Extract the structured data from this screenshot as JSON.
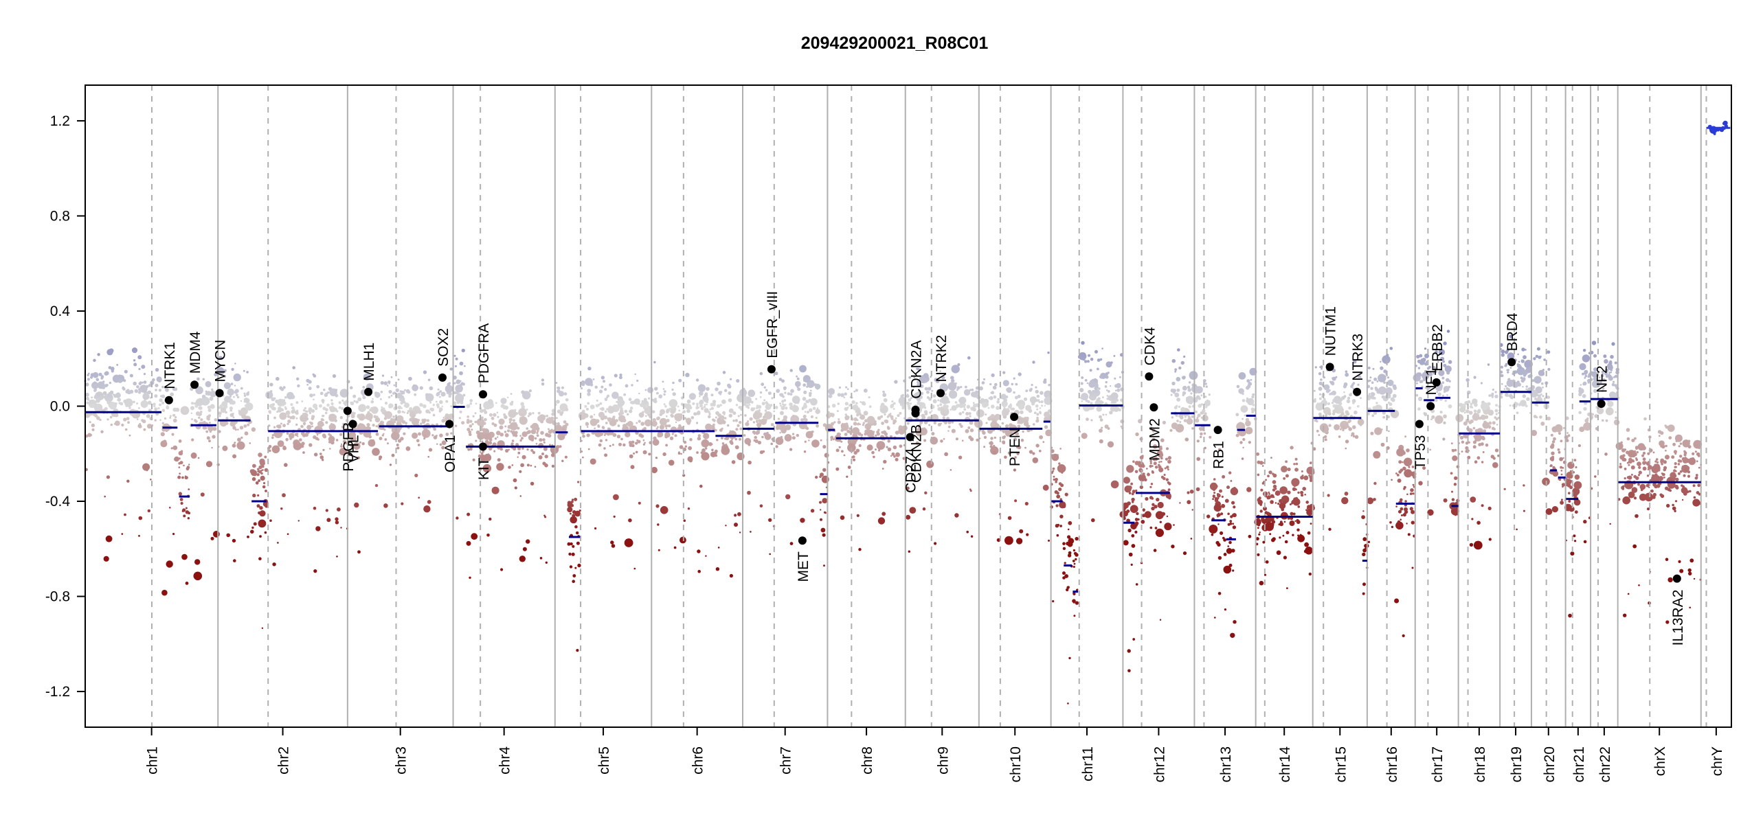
{
  "chart_data": {
    "type": "scatter",
    "title": "209429200021_R08C01",
    "xlabel": "",
    "ylabel": "",
    "ylim": [
      -1.35,
      1.35
    ],
    "yticks": [
      "-1.2",
      "-0.8",
      "-0.4",
      "0.0",
      "0.4",
      "0.8",
      "1.2"
    ],
    "grid": false,
    "colors": {
      "gain": "#8a8cc0",
      "neutral": "#d9d9d9",
      "loss": "#8b1010",
      "segment": "#00008b",
      "chrY_segment": "#2b3bd6",
      "line": "#b0b0b0"
    },
    "chromosomes": [
      {
        "name": "chr1",
        "start": 0,
        "end": 249,
        "centromere": 125
      },
      {
        "name": "chr2",
        "start": 249,
        "end": 492,
        "centromere": 343
      },
      {
        "name": "chr3",
        "start": 492,
        "end": 690,
        "centromere": 583
      },
      {
        "name": "chr4",
        "start": 690,
        "end": 881,
        "centromere": 741
      },
      {
        "name": "chr5",
        "start": 881,
        "end": 1062,
        "centromere": 929
      },
      {
        "name": "chr6",
        "start": 1062,
        "end": 1233,
        "centromere": 1122
      },
      {
        "name": "chr7",
        "start": 1233,
        "end": 1392,
        "centromere": 1292
      },
      {
        "name": "chr8",
        "start": 1392,
        "end": 1538,
        "centromere": 1437
      },
      {
        "name": "chr9",
        "start": 1538,
        "end": 1676,
        "centromere": 1587
      },
      {
        "name": "chr10",
        "start": 1676,
        "end": 1811,
        "centromere": 1716
      },
      {
        "name": "chr11",
        "start": 1811,
        "end": 1946,
        "centromere": 1864
      },
      {
        "name": "chr12",
        "start": 1946,
        "end": 2080,
        "centromere": 1981
      },
      {
        "name": "chr13",
        "start": 2080,
        "end": 2195,
        "centromere": 2098
      },
      {
        "name": "chr14",
        "start": 2195,
        "end": 2302,
        "centromere": 2212
      },
      {
        "name": "chr15",
        "start": 2302,
        "end": 2404,
        "centromere": 2322
      },
      {
        "name": "chr16",
        "start": 2404,
        "end": 2494,
        "centromere": 2441
      },
      {
        "name": "chr17",
        "start": 2494,
        "end": 2575,
        "centromere": 2518
      },
      {
        "name": "chr18",
        "start": 2575,
        "end": 2653,
        "centromere": 2593
      },
      {
        "name": "chr19",
        "start": 2653,
        "end": 2712,
        "centromere": 2680
      },
      {
        "name": "chr20",
        "start": 2712,
        "end": 2776,
        "centromere": 2740
      },
      {
        "name": "chr21",
        "start": 2776,
        "end": 2823,
        "centromere": 2789
      },
      {
        "name": "chr22",
        "start": 2823,
        "end": 2874,
        "centromere": 2837
      },
      {
        "name": "chrX",
        "start": 2874,
        "end": 3030,
        "centromere": 2934
      },
      {
        "name": "chrY",
        "start": 3030,
        "end": 3087,
        "centromere": 3040
      }
    ],
    "segments": [
      {
        "start": 0,
        "end": 143,
        "value": -0.025
      },
      {
        "start": 145,
        "end": 173,
        "value": -0.09
      },
      {
        "start": 176,
        "end": 196,
        "value": -0.38
      },
      {
        "start": 198,
        "end": 246,
        "value": -0.08
      },
      {
        "start": 249,
        "end": 310,
        "value": -0.06
      },
      {
        "start": 312,
        "end": 340,
        "value": -0.4
      },
      {
        "start": 343,
        "end": 492,
        "value": -0.105
      },
      {
        "start": 492,
        "end": 549,
        "value": -0.105
      },
      {
        "start": 551,
        "end": 688,
        "value": -0.085
      },
      {
        "start": 690,
        "end": 712,
        "value": -0.003
      },
      {
        "start": 714,
        "end": 881,
        "value": -0.17
      },
      {
        "start": 882,
        "end": 905,
        "value": -0.11
      },
      {
        "start": 907,
        "end": 928,
        "value": -0.55
      },
      {
        "start": 930,
        "end": 1121,
        "value": -0.105
      },
      {
        "start": 1122,
        "end": 1180,
        "value": -0.105
      },
      {
        "start": 1182,
        "end": 1232,
        "value": -0.125
      },
      {
        "start": 1233,
        "end": 1292,
        "value": -0.095
      },
      {
        "start": 1294,
        "end": 1375,
        "value": -0.07
      },
      {
        "start": 1378,
        "end": 1392,
        "value": -0.37
      },
      {
        "start": 1393,
        "end": 1406,
        "value": -0.1
      },
      {
        "start": 1408,
        "end": 1538,
        "value": -0.135
      },
      {
        "start": 1539,
        "end": 1676,
        "value": -0.06
      },
      {
        "start": 1677,
        "end": 1795,
        "value": -0.095
      },
      {
        "start": 1797,
        "end": 1810,
        "value": -0.065
      },
      {
        "start": 1812,
        "end": 1833,
        "value": -0.4
      },
      {
        "start": 1835,
        "end": 1850,
        "value": -0.67
      },
      {
        "start": 1852,
        "end": 1862,
        "value": -0.78
      },
      {
        "start": 1864,
        "end": 1946,
        "value": 0.003
      },
      {
        "start": 1947,
        "end": 1968,
        "value": -0.49
      },
      {
        "start": 1970,
        "end": 2034,
        "value": -0.365
      },
      {
        "start": 2036,
        "end": 2080,
        "value": -0.03
      },
      {
        "start": 2081,
        "end": 2110,
        "value": -0.08
      },
      {
        "start": 2112,
        "end": 2138,
        "value": -0.48
      },
      {
        "start": 2140,
        "end": 2158,
        "value": -0.56
      },
      {
        "start": 2160,
        "end": 2175,
        "value": -0.1
      },
      {
        "start": 2177,
        "end": 2195,
        "value": -0.04
      },
      {
        "start": 2196,
        "end": 2302,
        "value": -0.465
      },
      {
        "start": 2303,
        "end": 2393,
        "value": -0.05
      },
      {
        "start": 2395,
        "end": 2404,
        "value": -0.65
      },
      {
        "start": 2405,
        "end": 2456,
        "value": -0.02
      },
      {
        "start": 2458,
        "end": 2493,
        "value": -0.41
      },
      {
        "start": 2495,
        "end": 2508,
        "value": 0.075
      },
      {
        "start": 2510,
        "end": 2530,
        "value": 0.025
      },
      {
        "start": 2532,
        "end": 2560,
        "value": 0.035
      },
      {
        "start": 2562,
        "end": 2575,
        "value": -0.42
      },
      {
        "start": 2576,
        "end": 2653,
        "value": -0.115
      },
      {
        "start": 2654,
        "end": 2712,
        "value": 0.06
      },
      {
        "start": 2713,
        "end": 2745,
        "value": 0.015
      },
      {
        "start": 2747,
        "end": 2760,
        "value": -0.27
      },
      {
        "start": 2762,
        "end": 2776,
        "value": -0.3
      },
      {
        "start": 2777,
        "end": 2800,
        "value": -0.39
      },
      {
        "start": 2802,
        "end": 2823,
        "value": 0.02
      },
      {
        "start": 2823,
        "end": 2874,
        "value": 0.03
      },
      {
        "start": 2875,
        "end": 3030,
        "value": -0.32
      },
      {
        "start": 3040,
        "end": 3085,
        "value": 1.17
      }
    ],
    "genes": [
      {
        "name": "NTRK1",
        "x": 157,
        "value": 0.025
      },
      {
        "name": "MDM4",
        "x": 205,
        "value": 0.09
      },
      {
        "name": "MYCN",
        "x": 252,
        "value": 0.055
      },
      {
        "name": "PDGFB",
        "x": 492,
        "value": -0.02
      },
      {
        "name": "VHL",
        "x": 502,
        "value": -0.075
      },
      {
        "name": "MLH1",
        "x": 531,
        "value": 0.06
      },
      {
        "name": "SOX2",
        "x": 670,
        "value": 0.12
      },
      {
        "name": "OPA1",
        "x": 683,
        "value": -0.075
      },
      {
        "name": "PDGFRA",
        "x": 746,
        "value": 0.05
      },
      {
        "name": "KIT",
        "x": 746,
        "value": -0.17
      },
      {
        "name": "EGFR_vIII",
        "x": 1287,
        "value": 0.155
      },
      {
        "name": "MET",
        "x": 1345,
        "value": -0.565
      },
      {
        "name": "CDKN2A",
        "x": 1557,
        "value": -0.015
      },
      {
        "name": "CDKN2B",
        "x": 1557,
        "value": -0.03
      },
      {
        "name": "CD274",
        "x": 1547,
        "value": -0.13
      },
      {
        "name": "NTRK2",
        "x": 1604,
        "value": 0.055
      },
      {
        "name": "PTEN",
        "x": 1742,
        "value": -0.045
      },
      {
        "name": "CDK4",
        "x": 1995,
        "value": 0.125
      },
      {
        "name": "MDM2",
        "x": 2004,
        "value": -0.005
      },
      {
        "name": "RB1",
        "x": 2124,
        "value": -0.1
      },
      {
        "name": "NUTM1",
        "x": 2334,
        "value": 0.165
      },
      {
        "name": "NTRK3",
        "x": 2385,
        "value": 0.06
      },
      {
        "name": "TP53",
        "x": 2502,
        "value": -0.075
      },
      {
        "name": "NF1",
        "x": 2523,
        "value": 0.0
      },
      {
        "name": "ERBB2",
        "x": 2534,
        "value": 0.1
      },
      {
        "name": "BRD4",
        "x": 2675,
        "value": 0.185
      },
      {
        "name": "NF2",
        "x": 2843,
        "value": 0.01
      },
      {
        "name": "IL13RA2",
        "x": 2985,
        "value": -0.725
      }
    ]
  }
}
